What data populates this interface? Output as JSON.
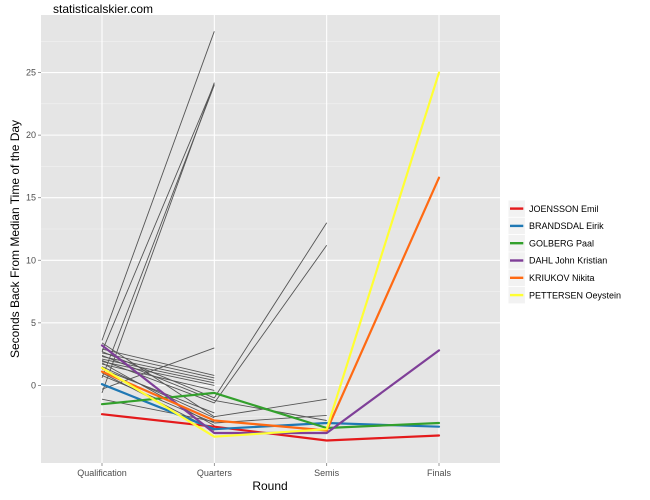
{
  "caption": "statisticalskier.com",
  "chart_data": {
    "type": "line",
    "title": "",
    "xlabel": "Round",
    "ylabel": "Seconds Back From Median Time of the Day",
    "categories": [
      "Qualification",
      "Quarters",
      "Semis",
      "Finals"
    ],
    "ylim": [
      -6.2,
      29.6
    ],
    "yticks": [
      0,
      5,
      10,
      15,
      20,
      25
    ],
    "grid": true,
    "legend_position": "right",
    "highlighted_series": [
      {
        "name": "JOENSSON Emil",
        "color": "#e41a1c",
        "values": [
          -2.3,
          -3.3,
          -4.4,
          -4.0
        ]
      },
      {
        "name": "BRANDSDAL Eirik",
        "color": "#1f78b4",
        "values": [
          0.1,
          -3.5,
          -3.0,
          -3.3
        ]
      },
      {
        "name": "GOLBERG Paal",
        "color": "#33a02c",
        "values": [
          -1.5,
          -0.6,
          -3.4,
          -3.0
        ]
      },
      {
        "name": "DAHL John Kristian",
        "color": "#7f3f98",
        "values": [
          3.2,
          -3.8,
          -3.8,
          2.8
        ]
      },
      {
        "name": "KRIUKOV Nikita",
        "color": "#ff6a13",
        "values": [
          1.1,
          -2.8,
          -3.6,
          16.6
        ]
      },
      {
        "name": "PETTERSEN Oeystein",
        "color": "#ffff33",
        "values": [
          1.4,
          -4.1,
          -3.5,
          25.0
        ]
      }
    ],
    "background_series": [
      {
        "values": [
          3.6,
          28.3
        ]
      },
      {
        "values": [
          2.7,
          24.1
        ]
      },
      {
        "values": [
          -0.6,
          24.2
        ]
      },
      {
        "values": [
          0.6,
          24.0
        ]
      },
      {
        "values": [
          2.9,
          0.8
        ]
      },
      {
        "values": [
          2.6,
          0.6
        ]
      },
      {
        "values": [
          2.3,
          0.4
        ]
      },
      {
        "values": [
          2.1,
          0.2
        ]
      },
      {
        "values": [
          1.9,
          0.0
        ]
      },
      {
        "values": [
          1.7,
          -0.4
        ]
      },
      {
        "values": [
          2.7,
          -1.0,
          13.0
        ]
      },
      {
        "values": [
          2.0,
          -1.4,
          11.2
        ]
      },
      {
        "values": [
          1.3,
          -2.2
        ]
      },
      {
        "values": [
          -0.3,
          3.0
        ]
      },
      {
        "values": [
          3.4,
          -2.5,
          -1.1
        ]
      },
      {
        "values": [
          1.5,
          -2.6
        ]
      },
      {
        "values": [
          2.4,
          -1.2,
          -2.8
        ]
      },
      {
        "values": [
          0.8,
          -3.0,
          -2.4
        ]
      },
      {
        "values": [
          -1.1,
          -2.9
        ]
      },
      {
        "values": [
          1.0,
          -3.6
        ]
      },
      {
        "values": [
          1.8,
          -3.2
        ]
      }
    ]
  }
}
